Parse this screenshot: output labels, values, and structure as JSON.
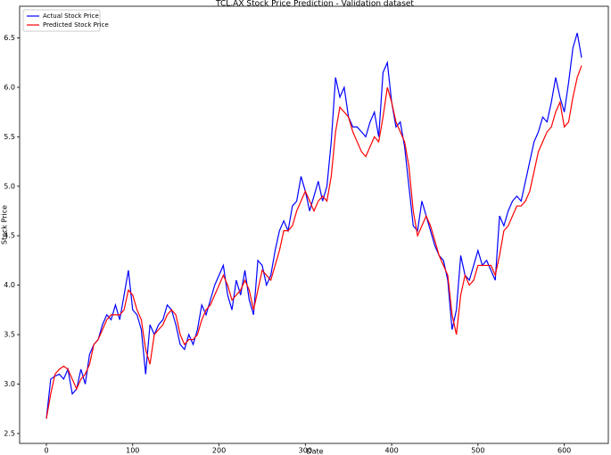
{
  "chart_data": {
    "type": "line",
    "title": "TCL.AX Stock Price Prediction - Validation dataset",
    "xlabel": "Date",
    "ylabel": "Stock Price",
    "x": [
      0,
      5,
      10,
      15,
      20,
      25,
      30,
      35,
      40,
      45,
      50,
      55,
      60,
      65,
      70,
      75,
      80,
      85,
      90,
      95,
      100,
      105,
      110,
      115,
      120,
      125,
      130,
      135,
      140,
      145,
      150,
      155,
      160,
      165,
      170,
      175,
      180,
      185,
      190,
      195,
      200,
      205,
      210,
      215,
      220,
      225,
      230,
      235,
      240,
      245,
      250,
      255,
      260,
      265,
      270,
      275,
      280,
      285,
      290,
      295,
      300,
      305,
      310,
      315,
      320,
      325,
      330,
      335,
      340,
      345,
      350,
      355,
      360,
      365,
      370,
      375,
      380,
      385,
      390,
      395,
      400,
      405,
      410,
      415,
      420,
      425,
      430,
      435,
      440,
      445,
      450,
      455,
      460,
      465,
      470,
      475,
      480,
      485,
      490,
      495,
      500,
      505,
      510,
      515,
      520,
      525,
      530,
      535,
      540,
      545,
      550,
      555,
      560,
      565,
      570,
      575,
      580,
      585,
      590,
      595,
      600,
      605,
      610,
      615,
      620
    ],
    "series": [
      {
        "name": "Actual Stock Price",
        "color": "#0000ff",
        "values": [
          2.65,
          3.05,
          3.08,
          3.1,
          3.05,
          3.15,
          2.9,
          2.95,
          3.15,
          3.0,
          3.3,
          3.4,
          3.45,
          3.6,
          3.7,
          3.65,
          3.8,
          3.65,
          3.9,
          4.15,
          3.75,
          3.7,
          3.55,
          3.1,
          3.6,
          3.5,
          3.6,
          3.65,
          3.8,
          3.75,
          3.6,
          3.4,
          3.35,
          3.5,
          3.4,
          3.55,
          3.8,
          3.7,
          3.85,
          4.0,
          4.1,
          4.2,
          3.9,
          3.75,
          4.05,
          3.9,
          4.15,
          3.85,
          3.7,
          4.25,
          4.2,
          4.0,
          4.1,
          4.35,
          4.55,
          4.65,
          4.55,
          4.8,
          4.85,
          5.1,
          4.95,
          4.75,
          4.9,
          5.05,
          4.85,
          5.0,
          5.45,
          6.1,
          5.9,
          6.0,
          5.7,
          5.6,
          5.6,
          5.55,
          5.5,
          5.65,
          5.75,
          5.5,
          6.15,
          6.25,
          5.85,
          5.6,
          5.65,
          5.4,
          5.0,
          4.6,
          4.55,
          4.85,
          4.7,
          4.55,
          4.4,
          4.3,
          4.25,
          4.05,
          3.55,
          3.75,
          4.3,
          4.1,
          4.05,
          4.2,
          4.35,
          4.2,
          4.25,
          4.15,
          4.05,
          4.7,
          4.6,
          4.75,
          4.85,
          4.9,
          4.85,
          5.05,
          5.25,
          5.45,
          5.55,
          5.7,
          5.65,
          5.85,
          6.1,
          5.9,
          5.75,
          6.05,
          6.4,
          6.55,
          6.3
        ]
      },
      {
        "name": "Predicted Stock Price",
        "color": "#ff0000",
        "values": [
          2.65,
          2.9,
          3.1,
          3.15,
          3.18,
          3.15,
          3.05,
          2.95,
          3.05,
          3.1,
          3.2,
          3.4,
          3.45,
          3.55,
          3.65,
          3.7,
          3.7,
          3.7,
          3.75,
          3.95,
          3.9,
          3.75,
          3.65,
          3.35,
          3.2,
          3.5,
          3.55,
          3.6,
          3.7,
          3.75,
          3.7,
          3.5,
          3.4,
          3.45,
          3.45,
          3.5,
          3.65,
          3.75,
          3.8,
          3.9,
          4.0,
          4.1,
          4.0,
          3.85,
          3.9,
          3.95,
          4.05,
          3.95,
          3.75,
          3.95,
          4.15,
          4.1,
          4.05,
          4.2,
          4.35,
          4.55,
          4.55,
          4.6,
          4.75,
          4.85,
          4.95,
          4.85,
          4.75,
          4.85,
          4.9,
          4.85,
          5.1,
          5.55,
          5.8,
          5.75,
          5.7,
          5.55,
          5.45,
          5.35,
          5.3,
          5.4,
          5.5,
          5.45,
          5.7,
          6.0,
          5.85,
          5.65,
          5.55,
          5.45,
          5.2,
          4.75,
          4.5,
          4.6,
          4.7,
          4.6,
          4.45,
          4.3,
          4.2,
          4.1,
          3.7,
          3.5,
          3.9,
          4.1,
          4.0,
          4.05,
          4.2,
          4.2,
          4.2,
          4.2,
          4.1,
          4.3,
          4.55,
          4.6,
          4.7,
          4.8,
          4.8,
          4.85,
          4.95,
          5.15,
          5.35,
          5.45,
          5.55,
          5.6,
          5.75,
          5.85,
          5.6,
          5.65,
          5.9,
          6.1,
          6.22
        ]
      }
    ],
    "xlim": [
      -31,
      651
    ],
    "ylim": [
      2.4,
      6.82
    ],
    "xticks": [
      0,
      100,
      200,
      300,
      400,
      500,
      600
    ],
    "yticks": [
      2.5,
      {
        "value": 3,
        "label": "3.0"
      },
      3.5,
      {
        "value": 4,
        "label": "4.0"
      },
      4.5,
      {
        "value": 5,
        "label": "5.0"
      },
      5.5,
      {
        "value": 6,
        "label": "6.0"
      },
      6.5
    ],
    "legend": "upper left"
  }
}
